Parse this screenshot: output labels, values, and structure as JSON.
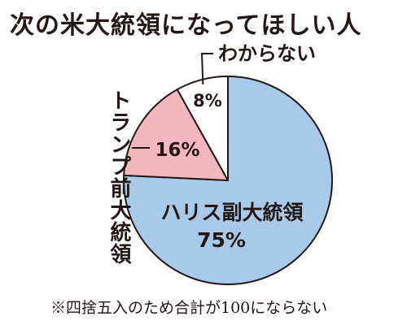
{
  "chart_data": {
    "type": "pie",
    "title": "次の米大統領になってほしい人",
    "slices": [
      {
        "label": "ハリス副大統領",
        "value": 75,
        "value_label": "75%",
        "color": "#a9c9ea"
      },
      {
        "label": "トランプ前大統領",
        "value": 16,
        "value_label": "16%",
        "color": "#f2b8bd"
      },
      {
        "label": "わからない",
        "value": 8,
        "value_label": "8%",
        "color": "#ffffff"
      }
    ],
    "note": "※四捨五入のため合計が100にならない"
  },
  "colors": {
    "outline": "#231815"
  }
}
